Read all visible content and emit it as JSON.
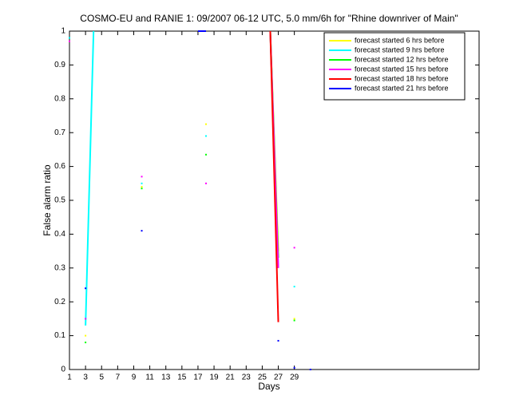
{
  "chart_data": {
    "type": "line",
    "title": "COSMO-EU and RANIE 1: 09/2007 06-12 UTC, 5.0 mm/6h for \"Rhine downriver of Main\"",
    "x_label": "Days",
    "y_label": "False alarm ratio",
    "x": [
      1,
      2,
      3,
      4,
      5,
      6,
      7,
      8,
      9,
      10,
      11,
      12,
      13,
      14,
      15,
      16,
      17,
      18,
      19,
      20,
      21,
      22,
      23,
      24,
      25,
      26,
      27,
      28,
      29,
      30,
      31
    ],
    "xlim": [
      1,
      52
    ],
    "ylim": [
      0,
      1
    ],
    "xticks": [
      1,
      3,
      5,
      7,
      9,
      11,
      13,
      15,
      17,
      19,
      21,
      23,
      25,
      27,
      29
    ],
    "yticks": [
      0,
      0.1,
      0.2,
      0.3,
      0.4,
      0.5,
      0.6,
      0.7,
      0.8,
      0.9,
      1
    ],
    "legend": "upper right",
    "series": [
      {
        "name": "forecast started 6 hrs before",
        "color": "#ffff00",
        "values": [
          0.97,
          null,
          0.1,
          null,
          null,
          null,
          null,
          null,
          null,
          0.54,
          null,
          null,
          null,
          null,
          null,
          null,
          null,
          0.725,
          null,
          null,
          null,
          null,
          null,
          null,
          null,
          1,
          0.35,
          null,
          0.15,
          null,
          null
        ]
      },
      {
        "name": "forecast started 9 hrs before",
        "color": "#00ffff",
        "values": [
          0.98,
          null,
          0.13,
          1,
          null,
          null,
          null,
          null,
          null,
          0.55,
          null,
          null,
          null,
          null,
          null,
          null,
          null,
          0.69,
          null,
          null,
          null,
          null,
          null,
          null,
          null,
          1,
          0.3,
          null,
          0.245,
          null,
          null
        ]
      },
      {
        "name": "forecast started 12 hrs before",
        "color": "#00ff00",
        "values": [
          null,
          null,
          0.08,
          null,
          null,
          null,
          null,
          null,
          null,
          0.535,
          null,
          null,
          null,
          null,
          null,
          null,
          null,
          0.635,
          null,
          null,
          null,
          null,
          null,
          null,
          null,
          1,
          0.33,
          null,
          0.145,
          null,
          null
        ]
      },
      {
        "name": "forecast started 15 hrs before",
        "color": "#ff00ff",
        "values": [
          0.97,
          null,
          0.15,
          null,
          null,
          null,
          null,
          null,
          null,
          0.57,
          null,
          null,
          null,
          null,
          null,
          null,
          null,
          0.55,
          null,
          null,
          null,
          null,
          null,
          null,
          null,
          1,
          0.3,
          null,
          0.36,
          null,
          null
        ]
      },
      {
        "name": "forecast started 18 hrs before",
        "color": "#ff0000",
        "values": [
          null,
          null,
          null,
          null,
          null,
          null,
          null,
          null,
          null,
          null,
          null,
          null,
          null,
          null,
          null,
          null,
          null,
          null,
          null,
          null,
          null,
          null,
          null,
          null,
          null,
          1,
          0.14,
          null,
          null,
          null,
          null
        ]
      },
      {
        "name": "forecast started 21 hrs before",
        "color": "#0000ff",
        "values": [
          null,
          null,
          0.24,
          null,
          null,
          null,
          null,
          null,
          null,
          0.41,
          null,
          null,
          null,
          null,
          null,
          null,
          1,
          1,
          null,
          null,
          null,
          null,
          null,
          null,
          null,
          null,
          0.085,
          null,
          0.005,
          null,
          0
        ]
      }
    ]
  }
}
